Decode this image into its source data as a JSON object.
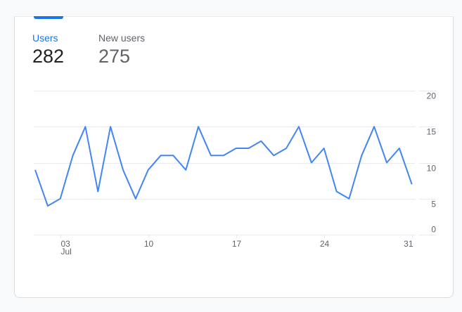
{
  "metrics": [
    {
      "label": "Users",
      "value": "282",
      "active": true
    },
    {
      "label": "New users",
      "value": "275",
      "active": false
    }
  ],
  "colors": {
    "accent": "#1a73e8",
    "line": "#4285f4",
    "grid": "#e8eaed",
    "text_muted": "#5f6368",
    "text_primary": "#202124",
    "background": "#f8f9fa"
  },
  "chart_data": {
    "type": "line",
    "title": "Users",
    "xlabel": "",
    "ylabel": "",
    "x": [
      1,
      2,
      3,
      4,
      5,
      6,
      7,
      8,
      9,
      10,
      11,
      12,
      13,
      14,
      15,
      16,
      17,
      18,
      19,
      20,
      21,
      22,
      23,
      24,
      25,
      26,
      27,
      28,
      29,
      30,
      31
    ],
    "series": [
      {
        "name": "Users",
        "values": [
          9,
          4,
          5,
          11,
          15,
          6,
          15,
          9,
          5,
          9,
          11,
          11,
          9,
          15,
          11,
          11,
          12,
          12,
          13,
          11,
          12,
          15,
          10,
          12,
          6,
          5,
          11,
          15,
          10,
          12,
          7
        ]
      }
    ],
    "ylim": [
      0,
      20
    ],
    "yticks": [
      "20",
      "15",
      "10",
      "5",
      "0"
    ],
    "xticks": [
      {
        "day": 3,
        "label": "03",
        "sublabel": "Jul"
      },
      {
        "day": 10,
        "label": "10",
        "sublabel": ""
      },
      {
        "day": 17,
        "label": "17",
        "sublabel": ""
      },
      {
        "day": 24,
        "label": "24",
        "sublabel": ""
      },
      {
        "day": 31,
        "label": "31",
        "sublabel": ""
      }
    ],
    "grid": true,
    "y_axis_position": "right"
  }
}
